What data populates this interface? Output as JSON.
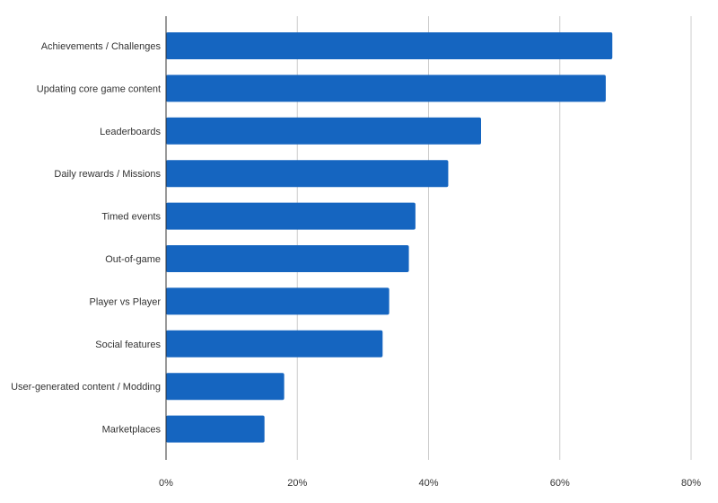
{
  "chart_data": {
    "type": "bar",
    "orientation": "horizontal",
    "title": "",
    "xlabel": "",
    "ylabel": "",
    "categories": [
      "Achievements / Challenges",
      "Updating core game content",
      "Leaderboards",
      "Daily rewards / Missions",
      "Timed events",
      "Out-of-game",
      "Player vs Player",
      "Social features",
      "User-generated content / Modding",
      "Marketplaces"
    ],
    "series": [
      {
        "values": [
          68,
          67,
          48,
          43,
          38,
          37,
          34,
          33,
          18,
          15
        ],
        "color": "#1565C0"
      }
    ],
    "xlim": [
      0,
      80
    ],
    "xticks": [
      "0%",
      "20%",
      "40%",
      "60%",
      "80%"
    ],
    "grid": true,
    "legend": "none"
  }
}
